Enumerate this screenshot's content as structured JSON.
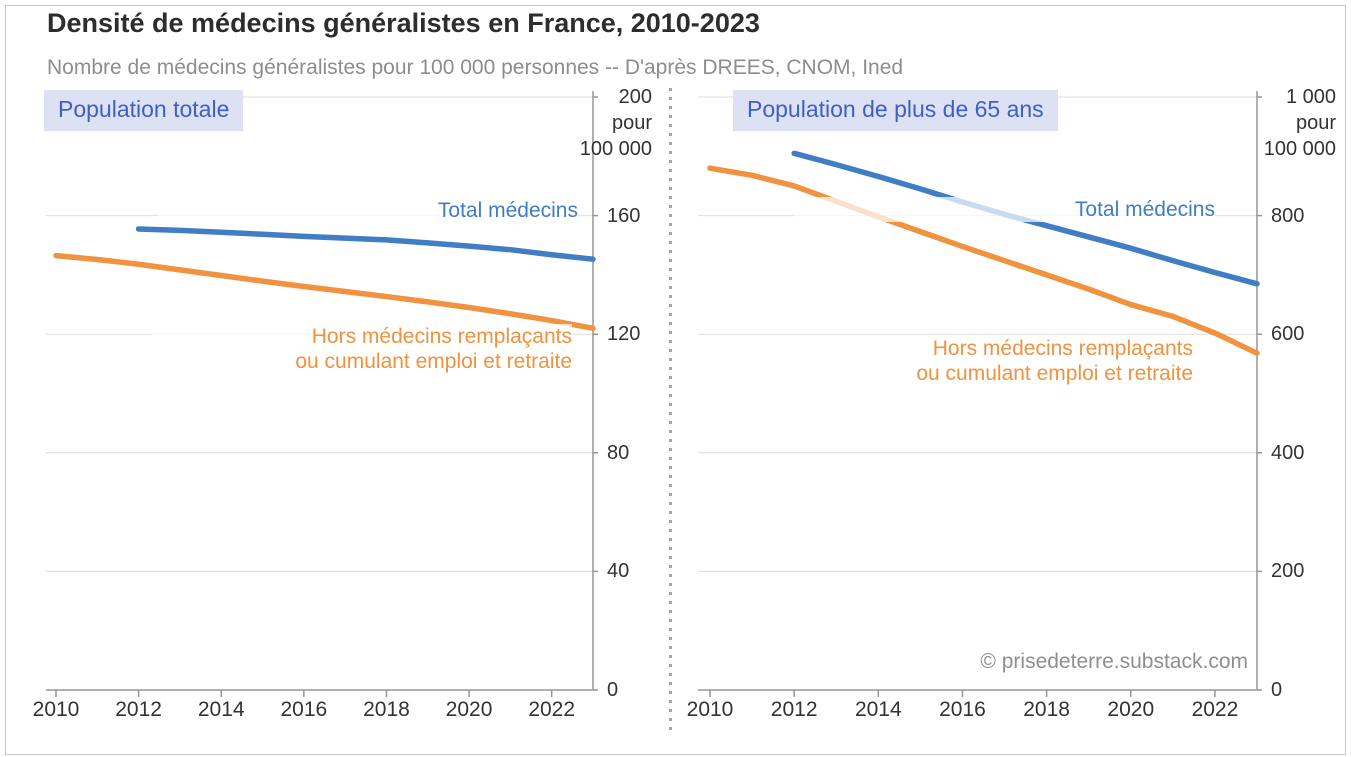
{
  "header": {
    "title": "Densité de médecins généralistes en France, 2010-2023",
    "subtitle": "Nombre de médecins généralistes pour 100 000 personnes -- D'après DREES, CNOM, Ined"
  },
  "watermark": "© prisedeterre.substack.com",
  "colors": {
    "total_series": "#3f7dc4",
    "hors_series": "#f0923e",
    "grid": "#dedede",
    "axis": "#969696",
    "tick_text": "#333333",
    "panel_label_bg": "#dce1f3",
    "panel_label_text": "#3f5fc6",
    "subtitle_text": "#8d8d8d",
    "watermark_text": "#8f8f8f"
  },
  "chart_data": [
    {
      "type": "line",
      "panel_label": "Population totale",
      "unit_lines": [
        "pour",
        "100 000"
      ],
      "xlim": [
        2010,
        2023
      ],
      "ylim": [
        0,
        200
      ],
      "xticks": [
        2010,
        2012,
        2014,
        2016,
        2018,
        2020,
        2022
      ],
      "yticks": [
        0,
        40,
        80,
        120,
        160,
        200
      ],
      "ytick_labels": [
        "0",
        "40",
        "80",
        "120",
        "160",
        "200"
      ],
      "grid": true,
      "legend_position": "inline-labels",
      "series": [
        {
          "name": "Total médecins",
          "label_lines": [
            "Total médecins"
          ],
          "color_key": "total_series",
          "x": [
            2012,
            2013,
            2014,
            2015,
            2016,
            2017,
            2018,
            2019,
            2020,
            2021,
            2022,
            2023
          ],
          "values": [
            155.5,
            155.0,
            154.4,
            153.7,
            153.0,
            152.4,
            151.8,
            150.8,
            149.7,
            148.5,
            146.8,
            145.3
          ]
        },
        {
          "name": "Hors médecins remplaçants ou cumulant emploi et retraite",
          "label_lines": [
            "Hors médecins remplaçants",
            "ou cumulant emploi et retraite"
          ],
          "color_key": "hors_series",
          "x": [
            2010,
            2011,
            2012,
            2013,
            2014,
            2015,
            2016,
            2017,
            2018,
            2019,
            2020,
            2021,
            2022,
            2023
          ],
          "values": [
            146.5,
            145.2,
            143.6,
            141.7,
            139.8,
            137.9,
            136.1,
            134.4,
            132.7,
            130.9,
            129.0,
            126.9,
            124.6,
            122.0
          ]
        }
      ]
    },
    {
      "type": "line",
      "panel_label": "Population de plus de 65 ans",
      "unit_lines": [
        "pour",
        "100 000"
      ],
      "xlim": [
        2010,
        2023
      ],
      "ylim": [
        0,
        1000
      ],
      "xticks": [
        2010,
        2012,
        2014,
        2016,
        2018,
        2020,
        2022
      ],
      "yticks": [
        0,
        200,
        400,
        600,
        800,
        1000
      ],
      "ytick_labels": [
        "0",
        "200",
        "400",
        "600",
        "800",
        "1 000"
      ],
      "grid": true,
      "legend_position": "inline-labels",
      "series": [
        {
          "name": "Total médecins",
          "label_lines": [
            "Total médecins"
          ],
          "color_key": "total_series",
          "x": [
            2012,
            2013,
            2014,
            2015,
            2016,
            2017,
            2018,
            2019,
            2020,
            2021,
            2022,
            2023
          ],
          "values": [
            905,
            886,
            866,
            845,
            823,
            802,
            783,
            764,
            745,
            724,
            704,
            685
          ]
        },
        {
          "name": "Hors médecins remplaçants ou cumulant emploi et retraite",
          "label_lines": [
            "Hors médecins remplaçants",
            "ou cumulant emploi et retraite"
          ],
          "color_key": "hors_series",
          "x": [
            2010,
            2011,
            2012,
            2013,
            2014,
            2015,
            2016,
            2017,
            2018,
            2019,
            2020,
            2021,
            2022,
            2023
          ],
          "values": [
            880,
            868,
            850,
            824,
            798,
            773,
            748,
            724,
            700,
            676,
            650,
            630,
            602,
            568
          ]
        }
      ]
    }
  ]
}
